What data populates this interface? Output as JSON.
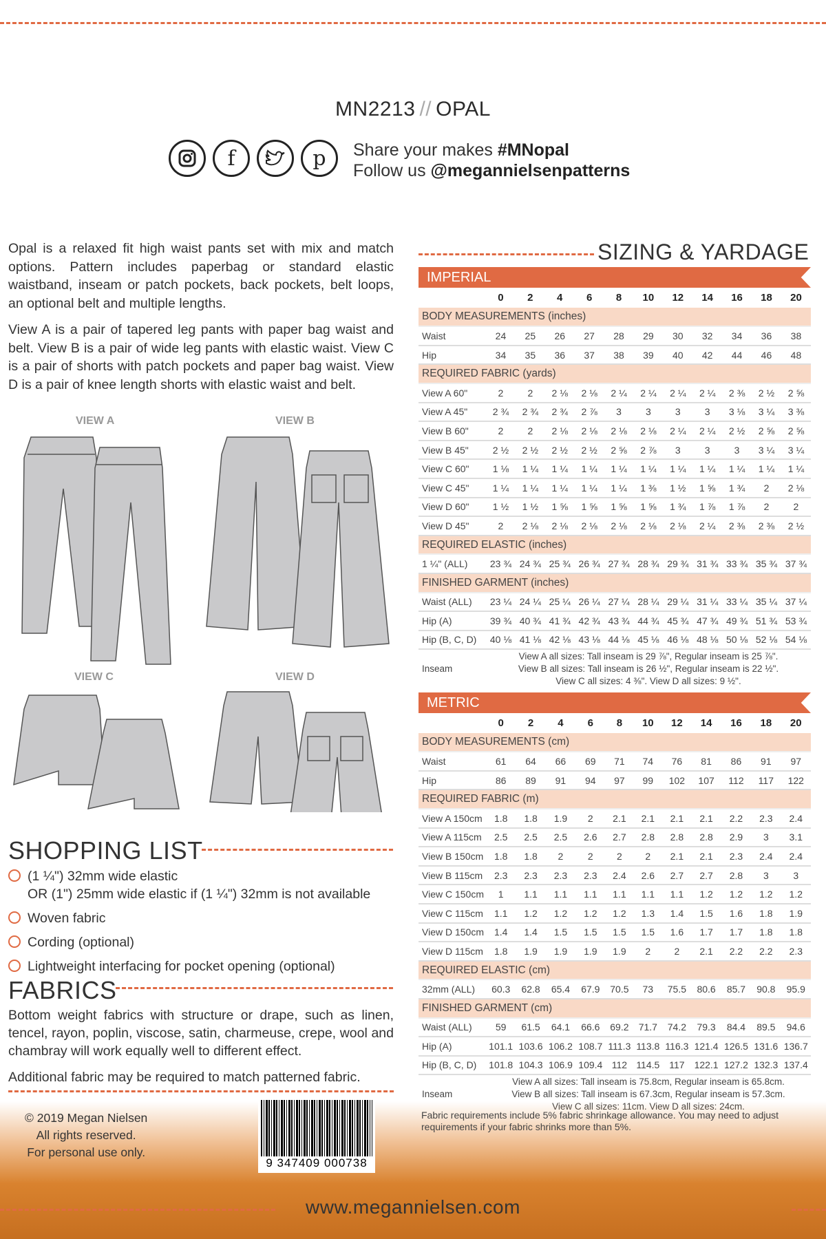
{
  "header": {
    "code": "MN2213",
    "slash": "//",
    "name": "OPAL",
    "share": "Share your makes ",
    "hashtag": "#MNopal",
    "follow": "Follow us ",
    "handle": "@megannielsenpatterns",
    "icons": [
      "instagram-icon",
      "facebook-icon",
      "twitter-icon",
      "pinterest-icon"
    ]
  },
  "intro": [
    "Opal is a relaxed fit high waist pants set with mix and match options. Pattern includes paperbag or standard elastic waistband, inseam or patch pockets, back pockets, belt loops, an optional belt and multiple lengths.",
    "View A is a pair of tapered leg pants with paper bag waist and belt. View B is a pair of wide leg pants with elastic waist. View C is a pair of shorts with patch pockets and paper bag waist. View D is a pair of knee length shorts with elastic waist and belt."
  ],
  "views": [
    "VIEW A",
    "VIEW B",
    "VIEW C",
    "VIEW D"
  ],
  "shopping": {
    "title": "SHOPPING LIST",
    "items": [
      "(1 ¼\") 32mm wide elastic\nOR (1\") 25mm wide elastic if (1 ¼\") 32mm is not available",
      "Woven fabric",
      "Cording (optional)",
      "Lightweight interfacing for pocket opening (optional)"
    ]
  },
  "fabrics": {
    "title": "FABRICS",
    "text": "Bottom weight fabrics with structure or drape, such as linen, tencel, rayon, poplin, viscose, satin, charmeuse, crepe, wool and chambray will work equally well to different effect.",
    "note": "Additional fabric may be required to match patterned fabric."
  },
  "sizing": {
    "title": "SIZING & YARDAGE",
    "sizes": [
      "0",
      "2",
      "4",
      "6",
      "8",
      "10",
      "12",
      "14",
      "16",
      "18",
      "20"
    ],
    "imperial": {
      "label": "IMPERIAL",
      "sections": [
        {
          "title": "BODY MEASUREMENTS (inches)",
          "rows": [
            [
              "Waist",
              "24",
              "25",
              "26",
              "27",
              "28",
              "29",
              "30",
              "32",
              "34",
              "36",
              "38"
            ],
            [
              "Hip",
              "34",
              "35",
              "36",
              "37",
              "38",
              "39",
              "40",
              "42",
              "44",
              "46",
              "48"
            ]
          ]
        },
        {
          "title": "REQUIRED FABRIC (yards)",
          "rows": [
            [
              "View A 60\"",
              "2",
              "2",
              "2 ⅛",
              "2 ⅛",
              "2 ¼",
              "2 ¼",
              "2 ¼",
              "2 ¼",
              "2 ⅜",
              "2 ½",
              "2 ⅝"
            ],
            [
              "View A 45\"",
              "2 ¾",
              "2 ¾",
              "2 ¾",
              "2 ⅞",
              "3",
              "3",
              "3",
              "3",
              "3 ⅛",
              "3 ¼",
              "3 ⅜"
            ],
            [
              "View B 60\"",
              "2",
              "2",
              "2 ⅛",
              "2 ⅛",
              "2 ⅛",
              "2 ⅛",
              "2 ¼",
              "2 ¼",
              "2 ½",
              "2 ⅝",
              "2 ⅝"
            ],
            [
              "View B 45\"",
              "2 ½",
              "2 ½",
              "2 ½",
              "2 ½",
              "2 ⅝",
              "2 ⅞",
              "3",
              "3",
              "3",
              "3 ¼",
              "3 ¼"
            ],
            [
              "View C 60\"",
              "1 ⅛",
              "1 ¼",
              "1 ¼",
              "1 ¼",
              "1 ¼",
              "1 ¼",
              "1 ¼",
              "1 ¼",
              "1 ¼",
              "1 ¼",
              "1 ¼"
            ],
            [
              "View C 45\"",
              "1 ¼",
              "1 ¼",
              "1 ¼",
              "1 ¼",
              "1 ¼",
              "1 ⅜",
              "1 ½",
              "1 ⅝",
              "1 ¾",
              "2",
              "2 ⅛"
            ],
            [
              "View D 60\"",
              "1 ½",
              "1 ½",
              "1 ⅝",
              "1 ⅝",
              "1 ⅝",
              "1 ⅝",
              "1 ¾",
              "1 ⅞",
              "1 ⅞",
              "2",
              "2"
            ],
            [
              "View D 45\"",
              "2",
              "2 ⅛",
              "2 ⅛",
              "2 ⅛",
              "2 ⅛",
              "2 ⅛",
              "2 ⅛",
              "2 ¼",
              "2 ⅜",
              "2 ⅜",
              "2 ½"
            ]
          ]
        },
        {
          "title": "REQUIRED ELASTIC (inches)",
          "rows": [
            [
              "1 ¼\" (ALL)",
              "23 ¾",
              "24 ¾",
              "25 ¾",
              "26 ¾",
              "27 ¾",
              "28 ¾",
              "29 ¾",
              "31 ¾",
              "33 ¾",
              "35 ¾",
              "37 ¾"
            ]
          ]
        },
        {
          "title": "FINISHED GARMENT (inches)",
          "rows": [
            [
              "Waist (ALL)",
              "23 ¼",
              "24 ¼",
              "25 ¼",
              "26 ¼",
              "27 ¼",
              "28 ¼",
              "29 ¼",
              "31 ¼",
              "33 ¼",
              "35 ¼",
              "37 ¼"
            ],
            [
              "Hip (A)",
              "39 ¾",
              "40 ¾",
              "41 ¾",
              "42 ¾",
              "43 ¾",
              "44 ¾",
              "45 ¾",
              "47 ¾",
              "49 ¾",
              "51 ¾",
              "53 ¾"
            ],
            [
              "Hip (B, C, D)",
              "40 ⅛",
              "41 ⅛",
              "42 ⅛",
              "43 ⅛",
              "44 ⅛",
              "45 ⅛",
              "46 ⅛",
              "48 ⅛",
              "50 ⅛",
              "52 ⅛",
              "54 ⅛"
            ]
          ]
        }
      ],
      "inseam": {
        "label": "Inseam",
        "lines": [
          "View A all sizes: Tall inseam is 29 ⅞\", Regular inseam is 25 ⅞\".",
          "View B all sizes: Tall inseam is 26 ½\", Regular inseam is 22 ½\".",
          "View C all sizes: 4 ⅜\". View D all sizes: 9 ½\"."
        ]
      }
    },
    "metric": {
      "label": "METRIC",
      "sections": [
        {
          "title": "BODY MEASUREMENTS (cm)",
          "rows": [
            [
              "Waist",
              "61",
              "64",
              "66",
              "69",
              "71",
              "74",
              "76",
              "81",
              "86",
              "91",
              "97"
            ],
            [
              "Hip",
              "86",
              "89",
              "91",
              "94",
              "97",
              "99",
              "102",
              "107",
              "112",
              "117",
              "122"
            ]
          ]
        },
        {
          "title": "REQUIRED FABRIC (m)",
          "rows": [
            [
              "View A 150cm",
              "1.8",
              "1.8",
              "1.9",
              "2",
              "2.1",
              "2.1",
              "2.1",
              "2.1",
              "2.2",
              "2.3",
              "2.4"
            ],
            [
              "View A 115cm",
              "2.5",
              "2.5",
              "2.5",
              "2.6",
              "2.7",
              "2.8",
              "2.8",
              "2.8",
              "2.9",
              "3",
              "3.1"
            ],
            [
              "View B 150cm",
              "1.8",
              "1.8",
              "2",
              "2",
              "2",
              "2",
              "2.1",
              "2.1",
              "2.3",
              "2.4",
              "2.4"
            ],
            [
              "View B 115cm",
              "2.3",
              "2.3",
              "2.3",
              "2.3",
              "2.4",
              "2.6",
              "2.7",
              "2.7",
              "2.8",
              "3",
              "3"
            ],
            [
              "View C 150cm",
              "1",
              "1.1",
              "1.1",
              "1.1",
              "1.1",
              "1.1",
              "1.1",
              "1.2",
              "1.2",
              "1.2",
              "1.2"
            ],
            [
              "View C 115cm",
              "1.1",
              "1.2",
              "1.2",
              "1.2",
              "1.2",
              "1.3",
              "1.4",
              "1.5",
              "1.6",
              "1.8",
              "1.9"
            ],
            [
              "View D 150cm",
              "1.4",
              "1.4",
              "1.5",
              "1.5",
              "1.5",
              "1.5",
              "1.6",
              "1.7",
              "1.7",
              "1.8",
              "1.8"
            ],
            [
              "View D 115cm",
              "1.8",
              "1.9",
              "1.9",
              "1.9",
              "1.9",
              "2",
              "2",
              "2.1",
              "2.2",
              "2.2",
              "2.3"
            ]
          ]
        },
        {
          "title": "REQUIRED ELASTIC (cm)",
          "rows": [
            [
              "32mm (ALL)",
              "60.3",
              "62.8",
              "65.4",
              "67.9",
              "70.5",
              "73",
              "75.5",
              "80.6",
              "85.7",
              "90.8",
              "95.9"
            ]
          ]
        },
        {
          "title": "FINISHED GARMENT (cm)",
          "rows": [
            [
              "Waist (ALL)",
              "59",
              "61.5",
              "64.1",
              "66.6",
              "69.2",
              "71.7",
              "74.2",
              "79.3",
              "84.4",
              "89.5",
              "94.6"
            ],
            [
              "Hip (A)",
              "101.1",
              "103.6",
              "106.2",
              "108.7",
              "111.3",
              "113.8",
              "116.3",
              "121.4",
              "126.5",
              "131.6",
              "136.7"
            ],
            [
              "Hip (B, C, D)",
              "101.8",
              "104.3",
              "106.9",
              "109.4",
              "112",
              "114.5",
              "117",
              "122.1",
              "127.2",
              "132.3",
              "137.4"
            ]
          ]
        }
      ],
      "inseam": {
        "label": "Inseam",
        "lines": [
          "View A all sizes: Tall inseam is 75.8cm, Regular inseam is 65.8cm.",
          "View B all sizes: Tall inseam is 67.3cm, Regular inseam is 57.3cm.",
          "View C all sizes: 11cm. View D all sizes: 24cm."
        ]
      }
    },
    "note": "Fabric requirements include 5% fabric shrinkage allowance. You may need to adjust requirements if your fabric shrinks more than 5%."
  },
  "footer": {
    "copyright": "© 2019 Megan Nielsen",
    "rights": "All rights reserved.",
    "personal": "For personal use only.",
    "barcode": "9 347409 000738",
    "url": "www.megannielsen.com"
  },
  "colors": {
    "accent": "#e06a43",
    "section_bg": "#f9d9c6"
  }
}
